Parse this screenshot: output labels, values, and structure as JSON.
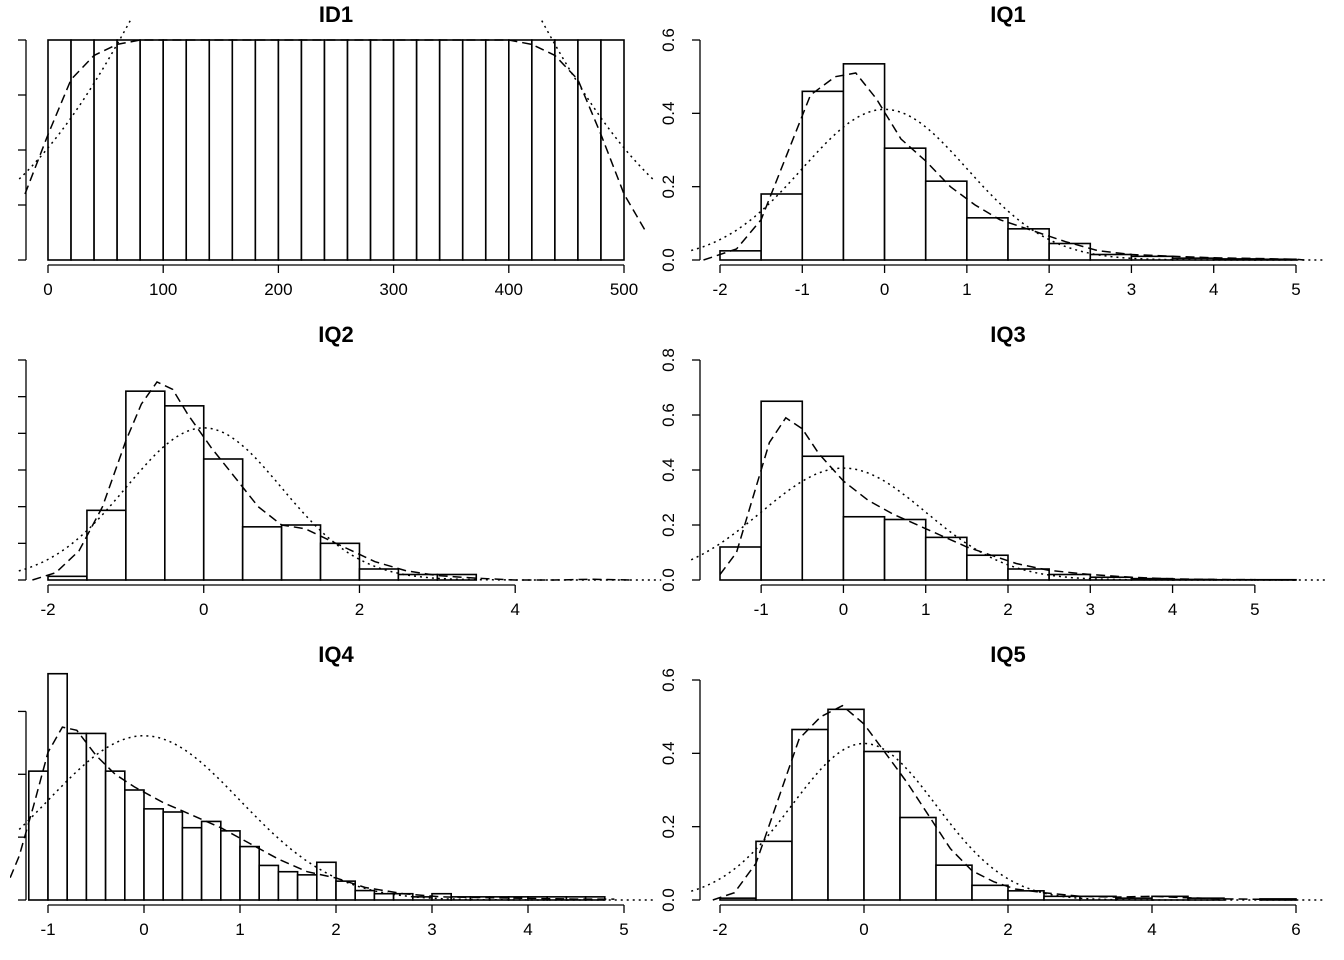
{
  "chart_data": [
    {
      "id": "ID1",
      "type": "bar",
      "title": "ID1",
      "xlim": [
        0,
        500
      ],
      "ylim": [
        0,
        1
      ],
      "show_y_labels": false,
      "xticks": [
        0,
        100,
        200,
        300,
        400,
        500
      ],
      "yticks": [
        0,
        0.25,
        0.5,
        0.75,
        1.0
      ],
      "bin_edges": [
        0,
        20,
        40,
        60,
        80,
        100,
        120,
        140,
        160,
        180,
        200,
        220,
        240,
        260,
        280,
        300,
        320,
        340,
        360,
        380,
        400,
        420,
        440,
        460,
        480,
        500
      ],
      "values": [
        1,
        1,
        1,
        1,
        1,
        1,
        1,
        1,
        1,
        1,
        1,
        1,
        1,
        1,
        1,
        1,
        1,
        1,
        1,
        1,
        1,
        1,
        1,
        1,
        1
      ],
      "density": {
        "x": [
          -20,
          0,
          20,
          40,
          60,
          80,
          100,
          120,
          140,
          160,
          180,
          200,
          220,
          240,
          260,
          280,
          300,
          320,
          340,
          360,
          380,
          400,
          420,
          440,
          460,
          480,
          500,
          520
        ],
        "y": [
          0.3,
          0.57,
          0.82,
          0.93,
          0.98,
          1.0,
          1.0,
          1.0,
          1.0,
          1.0,
          1.0,
          1.0,
          1.0,
          1.0,
          1.0,
          1.0,
          1.0,
          1.0,
          1.0,
          1.0,
          1.0,
          1.0,
          0.98,
          0.93,
          0.82,
          0.57,
          0.3,
          0.12
        ]
      },
      "normal": {
        "mean": 250,
        "sd": 142,
        "scale": 2.4
      },
      "ymin_curve": 0
    },
    {
      "id": "IQ1",
      "type": "bar",
      "title": "IQ1",
      "xlim": [
        -2,
        5
      ],
      "ylim": [
        0,
        0.6
      ],
      "show_y_labels": true,
      "xticks": [
        -2,
        -1,
        0,
        1,
        2,
        3,
        4,
        5
      ],
      "yticks": [
        0.0,
        0.2,
        0.4,
        0.6
      ],
      "bin_edges": [
        -2,
        -1.5,
        -1,
        -0.5,
        0,
        0.5,
        1,
        1.5,
        2,
        2.5,
        3,
        3.5,
        4,
        4.5,
        5
      ],
      "values": [
        0.025,
        0.18,
        0.46,
        0.535,
        0.305,
        0.215,
        0.115,
        0.085,
        0.045,
        0.015,
        0.01,
        0.005,
        0.003,
        0.002
      ],
      "density": {
        "x": [
          -2.2,
          -1.8,
          -1.5,
          -1.2,
          -0.9,
          -0.6,
          -0.35,
          -0.1,
          0.2,
          0.5,
          0.8,
          1.1,
          1.4,
          1.8,
          2.2,
          2.6,
          3.0,
          3.5,
          4.0,
          4.5,
          5.0,
          5.1
        ],
        "y": [
          0.0,
          0.03,
          0.11,
          0.28,
          0.45,
          0.5,
          0.51,
          0.44,
          0.33,
          0.27,
          0.2,
          0.15,
          0.11,
          0.08,
          0.05,
          0.025,
          0.015,
          0.01,
          0.006,
          0.004,
          0.002,
          0.0
        ]
      },
      "normal": {
        "mean": 0,
        "sd": 1,
        "scale": 1.03
      },
      "ymin_curve": -2.0
    },
    {
      "id": "IQ2",
      "type": "bar",
      "title": "IQ2",
      "xlim": [
        -2,
        5.5
      ],
      "ylim": [
        0,
        0.6
      ],
      "show_y_labels": false,
      "xticks": [
        -2,
        0,
        2,
        4
      ],
      "yticks": [
        0.0,
        0.1,
        0.2,
        0.3,
        0.4,
        0.5,
        0.6
      ],
      "bin_edges": [
        -2,
        -1.5,
        -1,
        -0.5,
        0,
        0.5,
        1,
        1.5,
        2,
        2.5,
        3,
        3.5
      ],
      "values": [
        0.01,
        0.19,
        0.515,
        0.475,
        0.33,
        0.145,
        0.15,
        0.1,
        0.03,
        0.015,
        0.015
      ],
      "density": {
        "x": [
          -2.2,
          -1.9,
          -1.6,
          -1.3,
          -1.0,
          -0.8,
          -0.6,
          -0.4,
          -0.2,
          0.1,
          0.4,
          0.7,
          1.0,
          1.3,
          1.6,
          1.9,
          2.2,
          2.6,
          3.0,
          3.5,
          4.0,
          4.5,
          5.0,
          5.5
        ],
        "y": [
          0.0,
          0.02,
          0.08,
          0.2,
          0.38,
          0.48,
          0.54,
          0.52,
          0.45,
          0.36,
          0.28,
          0.2,
          0.15,
          0.14,
          0.11,
          0.08,
          0.05,
          0.025,
          0.012,
          0.005,
          0.0,
          0.0,
          0.002,
          0.0
        ]
      },
      "normal": {
        "mean": 0,
        "sd": 1,
        "scale": 1.04
      },
      "ymin_curve": -2.0
    },
    {
      "id": "IQ3",
      "type": "bar",
      "title": "IQ3",
      "xlim": [
        -1.5,
        5.5
      ],
      "ylim": [
        0,
        0.8
      ],
      "show_y_labels": true,
      "xticks": [
        -1,
        0,
        1,
        2,
        3,
        4,
        5
      ],
      "yticks": [
        0.0,
        0.2,
        0.4,
        0.6,
        0.8
      ],
      "bin_edges": [
        -1.5,
        -1,
        -0.5,
        0,
        0.5,
        1,
        1.5,
        2,
        2.5,
        3,
        3.5,
        4,
        4.5,
        5,
        5.5
      ],
      "values": [
        0.12,
        0.65,
        0.45,
        0.23,
        0.22,
        0.155,
        0.09,
        0.04,
        0.02,
        0.01,
        0.005,
        0.002,
        0.001,
        0.001
      ],
      "density": {
        "x": [
          -1.5,
          -1.3,
          -1.1,
          -0.9,
          -0.7,
          -0.5,
          -0.3,
          0.0,
          0.3,
          0.6,
          0.9,
          1.2,
          1.5,
          1.8,
          2.1,
          2.5,
          3.0,
          3.5,
          4.0,
          4.5,
          5.0,
          5.5
        ],
        "y": [
          0.02,
          0.1,
          0.3,
          0.5,
          0.59,
          0.55,
          0.46,
          0.36,
          0.29,
          0.24,
          0.2,
          0.16,
          0.12,
          0.09,
          0.06,
          0.035,
          0.02,
          0.01,
          0.004,
          0.002,
          0.001,
          0.0
        ]
      },
      "normal": {
        "mean": 0,
        "sd": 1,
        "scale": 1.02
      },
      "ymin_curve": -2.0
    },
    {
      "id": "IQ4",
      "type": "bar",
      "title": "IQ4",
      "xlim": [
        -1,
        5
      ],
      "ylim": [
        0,
        0.7
      ],
      "show_y_labels": false,
      "xticks": [
        -1,
        0,
        1,
        2,
        3,
        4,
        5
      ],
      "yticks": [
        0.0,
        0.2,
        0.4,
        0.6
      ],
      "bin_edges": [
        -1.2,
        -1,
        -0.8,
        -0.6,
        -0.4,
        -0.2,
        0,
        0.2,
        0.4,
        0.6,
        0.8,
        1,
        1.2,
        1.4,
        1.6,
        1.8,
        2,
        2.2,
        2.4,
        2.6,
        2.8,
        3,
        3.2,
        3.4,
        3.6,
        3.8,
        4,
        4.2,
        4.4,
        4.6,
        4.8
      ],
      "values": [
        0.41,
        0.72,
        0.53,
        0.53,
        0.41,
        0.35,
        0.29,
        0.28,
        0.23,
        0.25,
        0.22,
        0.17,
        0.11,
        0.09,
        0.08,
        0.12,
        0.06,
        0.03,
        0.02,
        0.02,
        0.01,
        0.02,
        0.01,
        0.01,
        0.01,
        0.01,
        0.01,
        0.01,
        0.01,
        0.01
      ],
      "density": {
        "x": [
          -1.45,
          -1.3,
          -1.15,
          -1.0,
          -0.85,
          -0.7,
          -0.5,
          -0.3,
          -0.1,
          0.2,
          0.5,
          0.8,
          1.1,
          1.4,
          1.7,
          2.0,
          2.3,
          2.7,
          3.1,
          3.5,
          4.0,
          4.5,
          4.9
        ],
        "y": [
          0.03,
          0.14,
          0.3,
          0.47,
          0.55,
          0.54,
          0.46,
          0.4,
          0.36,
          0.31,
          0.27,
          0.23,
          0.18,
          0.13,
          0.09,
          0.07,
          0.04,
          0.02,
          0.01,
          0.008,
          0.005,
          0.003,
          0.003
        ]
      },
      "normal": {
        "mean": 0,
        "sd": 1,
        "scale": 1.31
      },
      "ymin_curve": -2.0
    },
    {
      "id": "IQ5",
      "type": "bar",
      "title": "IQ5",
      "xlim": [
        -2,
        6
      ],
      "ylim": [
        0,
        0.6
      ],
      "show_y_labels": true,
      "xticks": [
        -2,
        0,
        2,
        4,
        6
      ],
      "yticks": [
        0.0,
        0.2,
        0.4,
        0.6
      ],
      "bin_edges": [
        -2,
        -1.5,
        -1,
        -0.5,
        0,
        0.5,
        1,
        1.5,
        2,
        2.5,
        3,
        3.5,
        4,
        4.5,
        5,
        5.5,
        6
      ],
      "values": [
        0.005,
        0.16,
        0.465,
        0.52,
        0.405,
        0.225,
        0.095,
        0.04,
        0.025,
        0.01,
        0.01,
        0.005,
        0.01,
        0.005,
        0,
        0.003
      ],
      "density": {
        "x": [
          -2.1,
          -1.8,
          -1.5,
          -1.2,
          -0.9,
          -0.6,
          -0.3,
          0.0,
          0.3,
          0.6,
          0.9,
          1.2,
          1.5,
          1.8,
          2.1,
          2.5,
          3.0,
          3.5,
          4.0,
          4.5,
          5.0,
          5.5,
          6.0
        ],
        "y": [
          0.0,
          0.02,
          0.1,
          0.27,
          0.44,
          0.5,
          0.53,
          0.48,
          0.4,
          0.32,
          0.23,
          0.14,
          0.08,
          0.05,
          0.03,
          0.02,
          0.01,
          0.008,
          0.01,
          0.006,
          0.003,
          0.002,
          0.0
        ]
      },
      "normal": {
        "mean": 0,
        "sd": 1,
        "scale": 1.07
      },
      "ymin_curve": -2.0
    }
  ]
}
